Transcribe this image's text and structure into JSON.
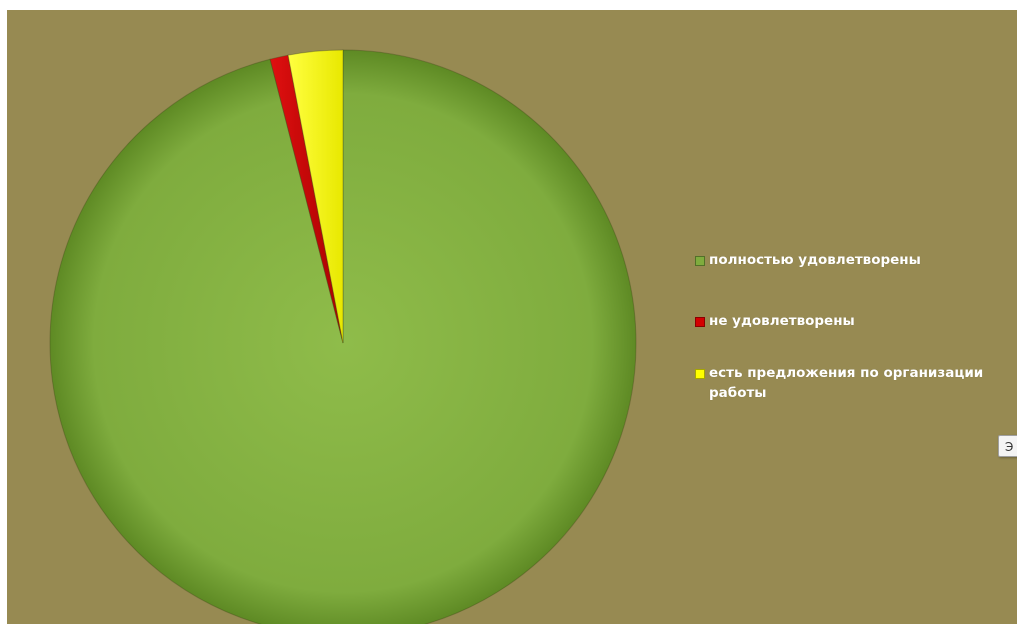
{
  "chart_data": {
    "type": "pie",
    "title": "",
    "background": "#978a52",
    "slices": [
      {
        "label": "полностью удовлетворены",
        "value": 96,
        "color": "#7fac3e"
      },
      {
        "label": "не удовлетворены",
        "value": 1,
        "color": "#d40000"
      },
      {
        "label": "есть предложения  по организации работы",
        "value": 3,
        "color": "#ffff00"
      }
    ],
    "legend_position": "right",
    "start": "top, clockwise"
  },
  "corner_tab": {
    "label": "Э"
  }
}
